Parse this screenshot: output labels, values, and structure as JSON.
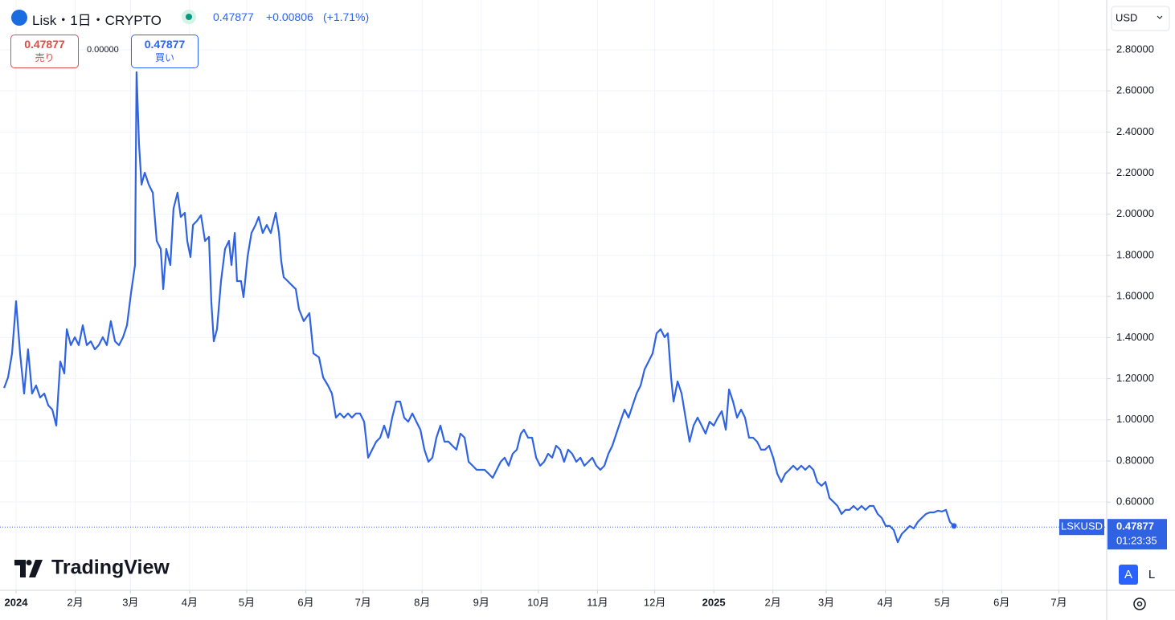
{
  "header": {
    "symbol": "Lisk・1日・CRYPTO",
    "price": "0.47877",
    "change": "+0.00806",
    "change_pct": "(+1.71%)",
    "sell_price": "0.47877",
    "sell_label": "売り",
    "spread": "0.00000",
    "buy_price": "0.47877",
    "buy_label": "買い",
    "currency": "USD"
  },
  "chart_data": {
    "type": "line",
    "x": [
      -6.3,
      -4.2,
      -2.1,
      0,
      2.1,
      4.2,
      6.3,
      8.4,
      10.5,
      12.6,
      14.8,
      16.9,
      19.0,
      21.1,
      23.2,
      25.3,
      26.6,
      28.7,
      30.8,
      32.9,
      35.0,
      37.1,
      39.2,
      41.3,
      43.4,
      45.5,
      47.6,
      49.7,
      51.9,
      54.0,
      56.1,
      58.2,
      60.3,
      62.4,
      63.2,
      64.5,
      65.8,
      67.5,
      69.6,
      71.7,
      73.8,
      75.9,
      77.2,
      78.8,
      80.9,
      82.6,
      84.7,
      86.4,
      88.5,
      89.8,
      91.5,
      92.8,
      94.9,
      97.0,
      99.1,
      101.2,
      102.4,
      103.7,
      105.4,
      107.5,
      109.6,
      111.7,
      113.0,
      114.7,
      115.9,
      118.0,
      119.3,
      121.4,
      123.5,
      125.6,
      127.3,
      129.4,
      131.5,
      133.6,
      136.2,
      137.9,
      139.1,
      140.4,
      142.5,
      144.6,
      146.7,
      148.4,
      150.9,
      153.9,
      156.0,
      158.9,
      161.1,
      163.6,
      165.7,
      167.8,
      169.9,
      172.0,
      174.1,
      176.2,
      178.3,
      180.4,
      182.6,
      184.7,
      186.8,
      188.9,
      191.0,
      193.1,
      195.2,
      197.3,
      199.4,
      201.5,
      203.6,
      205.7,
      207.9,
      210.0,
      212.1,
      214.2,
      216.3,
      218.4,
      220.5,
      222.6,
      224.7,
      226.8,
      228.9,
      231.0,
      233.1,
      235.3,
      237.4,
      239.5,
      241.6,
      243.7,
      245.8,
      247.9,
      250.0,
      252.1,
      254.2,
      256.3,
      258.4,
      260.5,
      262.7,
      264.8,
      266.4,
      268.6,
      270.7,
      272.8,
      274.9,
      277.0,
      279.1,
      281.2,
      283.3,
      285.4,
      287.5,
      289.6,
      291.7,
      293.9,
      296.0,
      298.1,
      300.2,
      302.3,
      304.4,
      306.5,
      308.6,
      310.7,
      312.8,
      314.9,
      317.0,
      319.2,
      321.3,
      323.4,
      325.5,
      327.6,
      329.7,
      331.8,
      333.9,
      336.0,
      338.1,
      340.2,
      341.9,
      343.6,
      344.9,
      347.0,
      349.1,
      351.2,
      353.3,
      355.4,
      357.5,
      359.6,
      361.7,
      363.8,
      366.0,
      368.1,
      370.2,
      372.3,
      374.0,
      376.1,
      378.2,
      380.3,
      382.4,
      384.5,
      386.6,
      388.7,
      390.8,
      392.9,
      395.0,
      397.2,
      399.3,
      401.4,
      403.5,
      405.6,
      407.7,
      409.8,
      411.9,
      414.0,
      416.1,
      418.2,
      420.3,
      422.5,
      424.6,
      426.7,
      428.8,
      430.9,
      433.0,
      435.1,
      437.2,
      439.3,
      441.4,
      443.5,
      445.6,
      447.7,
      449.8,
      452.0,
      454.1,
      456.2,
      458.3,
      460.4,
      462.5,
      464.6,
      466.7,
      468.8,
      470.9,
      473.0,
      475.1,
      477.3,
      479.4,
      481.5,
      483.6,
      485.7,
      487.8,
      489.9,
      492.0
    ],
    "series": [
      {
        "name": "LSKUSD",
        "color": "#2f63e3",
        "values": [
          1.155,
          1.206,
          1.323,
          1.577,
          1.323,
          1.128,
          1.343,
          1.128,
          1.167,
          1.109,
          1.128,
          1.07,
          1.05,
          0.972,
          1.284,
          1.226,
          1.441,
          1.363,
          1.402,
          1.363,
          1.46,
          1.363,
          1.382,
          1.343,
          1.363,
          1.402,
          1.363,
          1.48,
          1.382,
          1.363,
          1.402,
          1.46,
          1.616,
          1.753,
          2.691,
          2.339,
          2.144,
          2.202,
          2.144,
          2.105,
          1.87,
          1.831,
          1.636,
          1.831,
          1.753,
          2.027,
          2.105,
          1.987,
          2.007,
          1.87,
          1.792,
          1.948,
          1.968,
          1.995,
          1.87,
          1.89,
          1.577,
          1.382,
          1.441,
          1.675,
          1.831,
          1.87,
          1.753,
          1.909,
          1.675,
          1.675,
          1.597,
          1.792,
          1.909,
          1.948,
          1.987,
          1.909,
          1.948,
          1.909,
          2.007,
          1.909,
          1.773,
          1.694,
          1.675,
          1.655,
          1.636,
          1.538,
          1.48,
          1.519,
          1.323,
          1.304,
          1.206,
          1.167,
          1.128,
          1.011,
          1.031,
          1.011,
          1.031,
          1.011,
          1.031,
          1.031,
          0.991,
          0.816,
          0.855,
          0.894,
          0.913,
          0.972,
          0.913,
          1.011,
          1.089,
          1.089,
          1.011,
          0.991,
          1.031,
          0.991,
          0.952,
          0.855,
          0.796,
          0.816,
          0.913,
          0.972,
          0.894,
          0.894,
          0.874,
          0.855,
          0.933,
          0.913,
          0.796,
          0.777,
          0.757,
          0.757,
          0.757,
          0.738,
          0.718,
          0.757,
          0.796,
          0.816,
          0.777,
          0.835,
          0.855,
          0.933,
          0.952,
          0.913,
          0.913,
          0.816,
          0.777,
          0.796,
          0.835,
          0.816,
          0.874,
          0.855,
          0.796,
          0.855,
          0.835,
          0.796,
          0.816,
          0.777,
          0.796,
          0.816,
          0.777,
          0.757,
          0.777,
          0.835,
          0.874,
          0.933,
          0.991,
          1.05,
          1.011,
          1.07,
          1.128,
          1.167,
          1.245,
          1.284,
          1.323,
          1.421,
          1.441,
          1.402,
          1.421,
          1.206,
          1.089,
          1.187,
          1.128,
          1.011,
          0.894,
          0.972,
          1.011,
          0.972,
          0.933,
          0.991,
          0.972,
          1.011,
          1.042,
          0.952,
          1.148,
          1.089,
          1.011,
          1.05,
          1.011,
          0.913,
          0.913,
          0.894,
          0.855,
          0.855,
          0.874,
          0.816,
          0.738,
          0.698,
          0.738,
          0.757,
          0.777,
          0.757,
          0.777,
          0.757,
          0.777,
          0.757,
          0.698,
          0.679,
          0.698,
          0.62,
          0.601,
          0.581,
          0.542,
          0.562,
          0.562,
          0.581,
          0.562,
          0.581,
          0.562,
          0.581,
          0.581,
          0.542,
          0.523,
          0.484,
          0.484,
          0.464,
          0.405,
          0.445,
          0.464,
          0.484,
          0.472,
          0.503,
          0.523,
          0.542,
          0.55,
          0.55,
          0.558,
          0.554,
          0.562,
          0.503,
          0.484
        ]
      }
    ],
    "xlim": [
      -8.43,
      572.1
    ],
    "xticks": [
      {
        "value": 0,
        "label": "2024"
      },
      {
        "value": 31,
        "label": "2月"
      },
      {
        "value": 60,
        "label": "3月"
      },
      {
        "value": 91,
        "label": "4月"
      },
      {
        "value": 121,
        "label": "5月"
      },
      {
        "value": 152,
        "label": "6月"
      },
      {
        "value": 182,
        "label": "7月"
      },
      {
        "value": 213,
        "label": "8月"
      },
      {
        "value": 244,
        "label": "9月"
      },
      {
        "value": 274,
        "label": "10月"
      },
      {
        "value": 305,
        "label": "11月"
      },
      {
        "value": 335,
        "label": "12月"
      },
      {
        "value": 366,
        "label": "2025"
      },
      {
        "value": 397,
        "label": "2月"
      },
      {
        "value": 425,
        "label": "3月"
      },
      {
        "value": 456,
        "label": "4月"
      },
      {
        "value": 486,
        "label": "5月"
      },
      {
        "value": 517,
        "label": "6月"
      },
      {
        "value": 547,
        "label": "7月"
      }
    ],
    "ylim": [
      0.171,
      3.042
    ],
    "yticks": [
      {
        "value": 0.6,
        "label": "0.60000"
      },
      {
        "value": 0.8,
        "label": "0.80000"
      },
      {
        "value": 1.0,
        "label": "1.00000"
      },
      {
        "value": 1.2,
        "label": "1.20000"
      },
      {
        "value": 1.4,
        "label": "1.40000"
      },
      {
        "value": 1.6,
        "label": "1.60000"
      },
      {
        "value": 1.8,
        "label": "1.80000"
      },
      {
        "value": 2.0,
        "label": "2.00000"
      },
      {
        "value": 2.2,
        "label": "2.20000"
      },
      {
        "value": 2.4,
        "label": "2.40000"
      },
      {
        "value": 2.6,
        "label": "2.60000"
      },
      {
        "value": 2.8,
        "label": "2.80000"
      }
    ],
    "grid": true,
    "last_price": 0.47877,
    "countdown": "01:23:35"
  },
  "footer": {
    "logo": "TradingView",
    "scale_auto": "A",
    "scale_log": "L"
  }
}
